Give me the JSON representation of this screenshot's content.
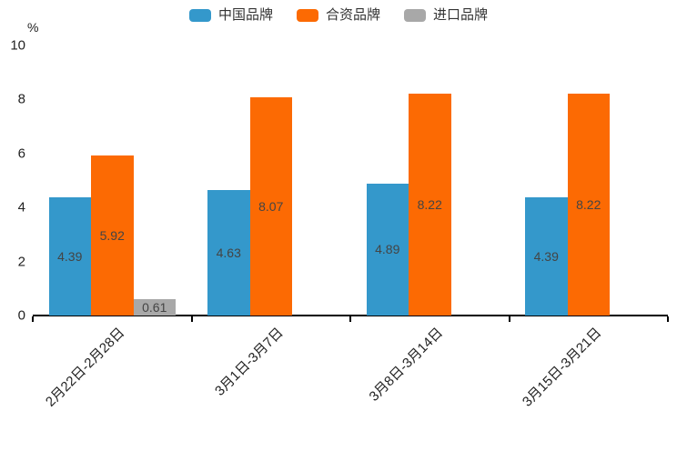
{
  "chart_data": {
    "type": "bar",
    "title": "",
    "unit_label": "%",
    "categories": [
      "2月22日-2月28日",
      "3月1日-3月7日",
      "3月8日-3月14日",
      "3月15日-3月21日"
    ],
    "series": [
      {
        "name": "中国品牌",
        "color": "#3498cb",
        "values": [
          4.39,
          4.63,
          4.89,
          4.39
        ]
      },
      {
        "name": "合资品牌",
        "color": "#fc6a03",
        "values": [
          5.92,
          8.07,
          8.22,
          8.22
        ]
      },
      {
        "name": "进口品牌",
        "color": "#a8a8a8",
        "values": [
          0.61,
          null,
          null,
          null
        ]
      }
    ],
    "ylim": [
      0,
      10
    ],
    "yticks": [
      0,
      2,
      4,
      6,
      8,
      10
    ],
    "grid": false,
    "legend_position": "top-center",
    "value_labels": "inside-center",
    "value_label_color": "#444444",
    "axis_color": "#000000",
    "xlabel_rotation_deg": 45
  }
}
